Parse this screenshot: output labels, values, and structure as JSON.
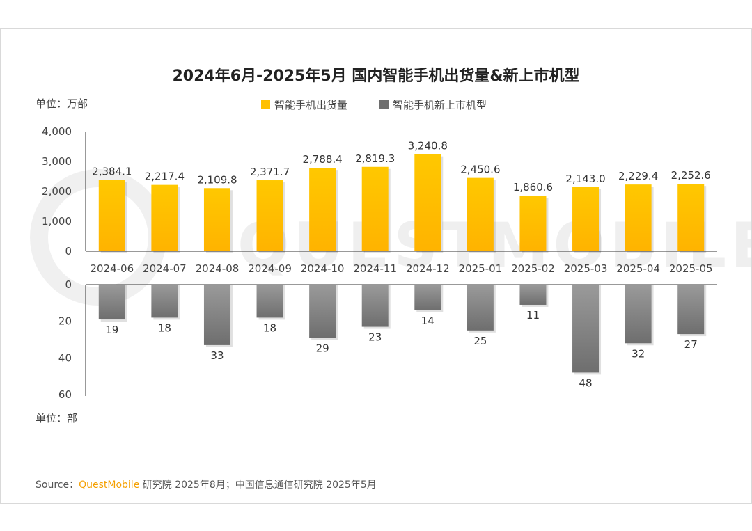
{
  "chart_data": {
    "type": "bar",
    "title": "2024年6月-2025年5月 国内智能手机出货量&新上市机型",
    "categories": [
      "2024-06",
      "2024-07",
      "2024-08",
      "2024-09",
      "2024-10",
      "2024-11",
      "2024-12",
      "2025-01",
      "2025-02",
      "2025-03",
      "2025-04",
      "2025-05"
    ],
    "series": [
      {
        "name": "智能手机出货量",
        "unit_label": "单位：万部",
        "values": [
          2384.1,
          2217.4,
          2109.8,
          2371.7,
          2788.4,
          2819.3,
          3240.8,
          2450.6,
          1860.6,
          2143.0,
          2229.4,
          2252.6
        ],
        "labels": [
          "2,384.1",
          "2,217.4",
          "2,109.8",
          "2,371.7",
          "2,788.4",
          "2,819.3",
          "3,240.8",
          "2,450.6",
          "1,860.6",
          "2,143.0",
          "2,229.4",
          "2,252.6"
        ],
        "ylim": [
          0,
          4000
        ],
        "ticks": [
          "4,000",
          "3,000",
          "2,000",
          "1,000",
          "0"
        ],
        "tick_values": [
          4000,
          3000,
          2000,
          1000,
          0
        ],
        "color": "#ffc000"
      },
      {
        "name": "智能手机新上市机型",
        "unit_label": "单位：部",
        "values": [
          19,
          18,
          33,
          18,
          29,
          23,
          14,
          25,
          11,
          48,
          32,
          27
        ],
        "labels": [
          "19",
          "18",
          "33",
          "18",
          "29",
          "23",
          "14",
          "25",
          "11",
          "48",
          "32",
          "27"
        ],
        "ylim": [
          0,
          60
        ],
        "ticks": [
          "0",
          "20",
          "40",
          "60"
        ],
        "tick_values": [
          0,
          20,
          40,
          60
        ],
        "direction": "down",
        "color": "#808080"
      }
    ],
    "legend": "top-center",
    "watermark": "QUESTMOBILE"
  },
  "source": {
    "prefix": "Source：",
    "brand": "QuestMobile",
    "rest": " 研究院 2025年8月；中国信息通信研究院 2025年5月"
  }
}
